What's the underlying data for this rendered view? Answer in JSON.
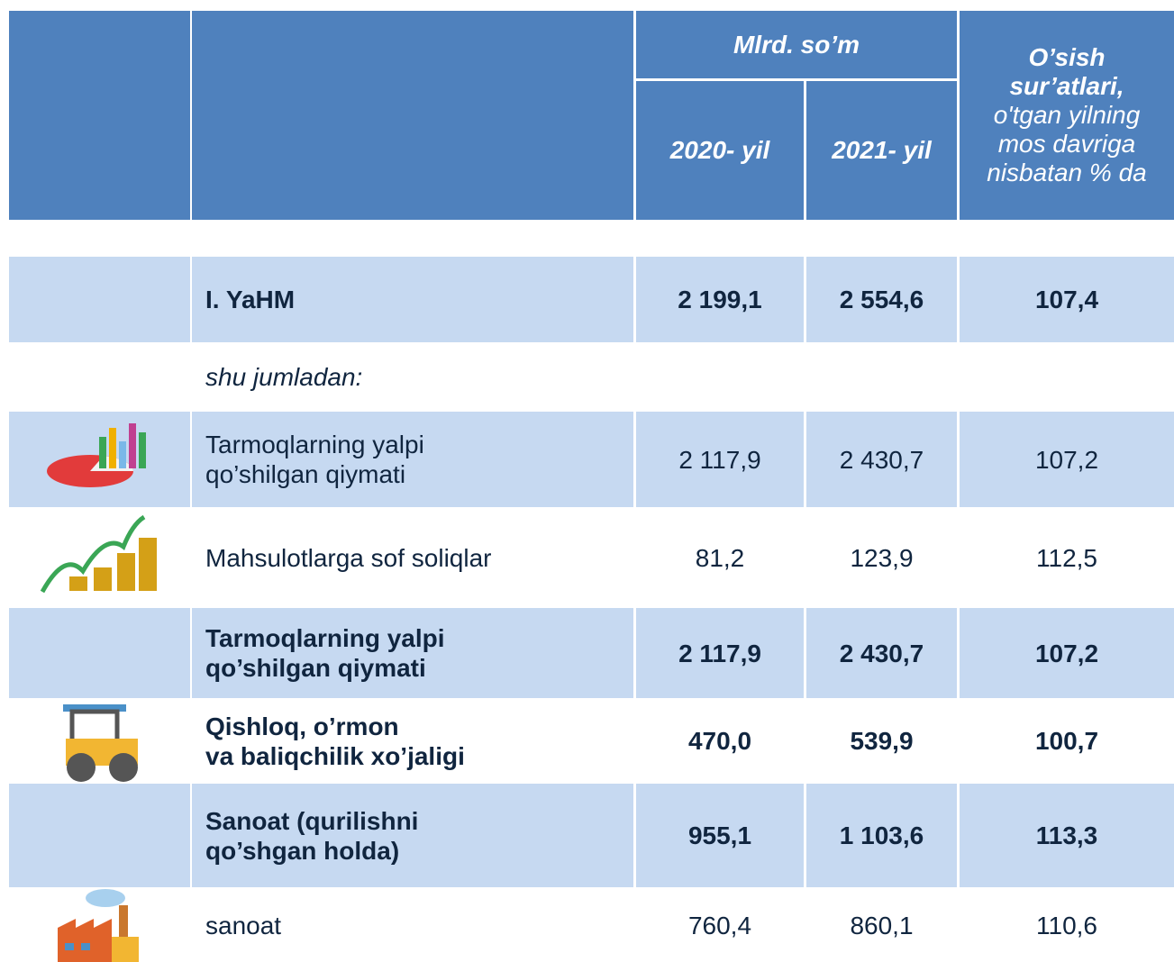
{
  "table": {
    "header": {
      "unit": "Mlrd. so’m",
      "columns": [
        "2020- yil",
        "2021- yil"
      ],
      "growth_title": [
        "O’sish",
        "sur’atlari,"
      ],
      "growth_note": [
        "o'tgan yilning",
        "mos davriga",
        "nisbatan % da"
      ]
    },
    "rows": [
      {
        "label": [
          "I. YaHM"
        ],
        "bold": true,
        "shaded": true,
        "cells": [
          "2 199,1",
          "2 554,6",
          "107,4"
        ]
      },
      {
        "label": [
          "shu jumladan:"
        ],
        "italic": true,
        "shaded": false
      },
      {
        "label": [
          "Tarmoqlarning yalpi",
          "qo’shilgan qiymati"
        ],
        "bold": false,
        "shaded": true,
        "cells": [
          "2 117,9",
          "2 430,7",
          "107,2"
        ]
      },
      {
        "label": [
          "Mahsulotlarga sof soliqlar"
        ],
        "bold": false,
        "shaded": false,
        "cells": [
          "81,2",
          "123,9",
          "112,5"
        ]
      },
      {
        "label": [
          "Tarmoqlarning yalpi",
          "qo’shilgan qiymati"
        ],
        "bold": true,
        "shaded": true,
        "cells": [
          "2 117,9",
          "2 430,7",
          "107,2"
        ]
      },
      {
        "label": [
          "Qishloq, o’rmon",
          "va baliqchilik xo’jaligi"
        ],
        "bold": true,
        "shaded": false,
        "cells": [
          "470,0",
          "539,9",
          "100,7"
        ]
      },
      {
        "label": [
          "Sanoat (qurilishni",
          "qo’shgan holda)"
        ],
        "bold": true,
        "shaded": true,
        "cells": [
          "955,1",
          "1 103,6",
          "113,3"
        ]
      },
      {
        "label": [
          "sanoat"
        ],
        "bold": false,
        "shaded": false,
        "cells": [
          "760,4",
          "860,1",
          "110,6"
        ]
      }
    ]
  }
}
